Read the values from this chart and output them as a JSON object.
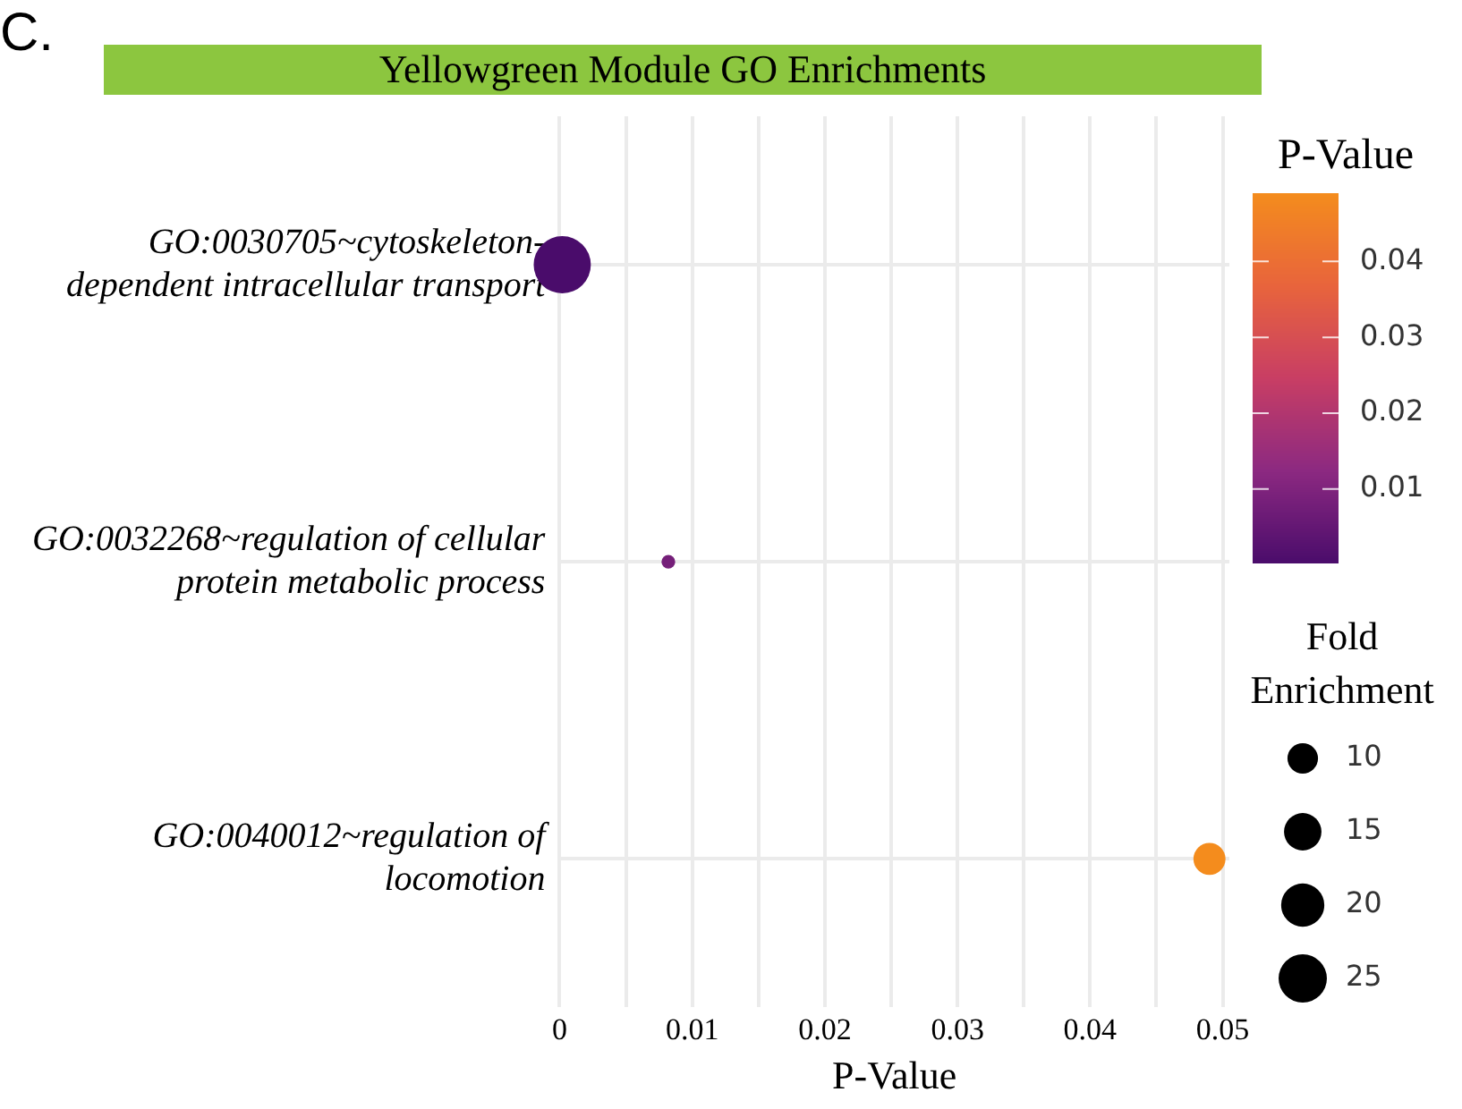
{
  "chart_data": {
    "type": "bubble",
    "orientation": "horizontal",
    "title": "Yellowgreen Module GO Enrichments",
    "xlabel": "P-Value",
    "clabel": "P-Value",
    "legend_title": "Fold Enrichment",
    "annotations": [
      "C."
    ],
    "categories": [
      "GO:0030705~cytoskeleton-dependent intracellular transport",
      "GO:0032268~regulation of cellular protein metabolic process",
      "GO:0040012~regulation of locomotion"
    ],
    "values": [
      0.0002,
      0.0082,
      0.049
    ],
    "sizes": [
      35,
      2,
      11
    ],
    "size_legend": [
      10,
      15,
      20,
      25
    ],
    "cvalues": [
      0.0002,
      0.0082,
      0.049
    ],
    "clim": [
      0.0002,
      0.049
    ],
    "cticks": [
      0.01,
      0.02,
      0.03,
      0.04
    ],
    "xlim": [
      0,
      0.0505
    ],
    "xticks": [
      0,
      {
        "value": 0.005,
        "label": null
      },
      0.01,
      {
        "value": 0.015,
        "label": null
      },
      0.02,
      {
        "value": 0.025,
        "label": null
      },
      0.03,
      {
        "value": 0.035,
        "label": null
      },
      0.04,
      {
        "value": 0.045,
        "label": null
      },
      0.05
    ],
    "grid": true
  }
}
